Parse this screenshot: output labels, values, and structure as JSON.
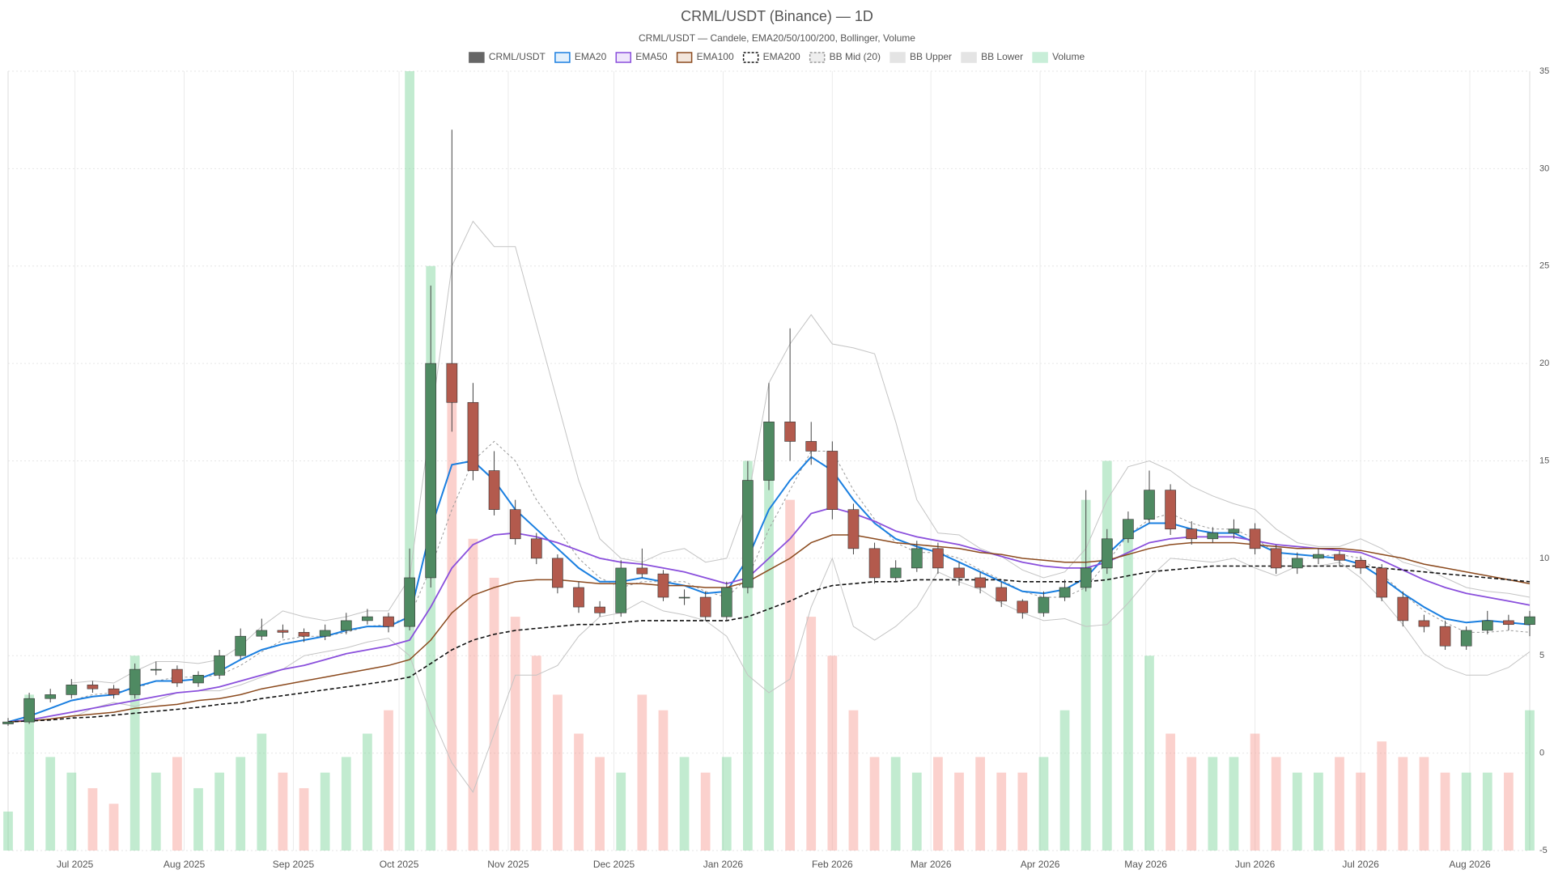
{
  "chart_data": {
    "type": "candlestick",
    "title": "CRML/USDT (Binance) — 1D",
    "subtitle": "CRML/USDT — Candele, EMA20/50/100/200, Bollinger, Volume",
    "xlim": [
      0,
      432
    ],
    "xticks": [
      {
        "value": 19,
        "label": "Jul 2025"
      },
      {
        "value": 50,
        "label": "Aug 2025"
      },
      {
        "value": 81,
        "label": "Sep 2025"
      },
      {
        "value": 111,
        "label": "Oct 2025"
      },
      {
        "value": 142,
        "label": "Nov 2025"
      },
      {
        "value": 172,
        "label": "Dec 2025"
      },
      {
        "value": 203,
        "label": "Jan 2026"
      },
      {
        "value": 234,
        "label": "Feb 2026"
      },
      {
        "value": 262,
        "label": "Mar 2026"
      },
      {
        "value": 293,
        "label": "Apr 2026"
      },
      {
        "value": 323,
        "label": "May 2026"
      },
      {
        "value": 354,
        "label": "Jun 2026"
      },
      {
        "value": 384,
        "label": "Jul 2026"
      },
      {
        "value": 415,
        "label": "Aug 2026"
      }
    ],
    "ylim": [
      -5,
      35
    ],
    "yticks": [
      -5,
      0,
      5,
      10,
      15,
      20,
      25,
      30,
      35
    ],
    "y2lim": [
      0,
      100
    ],
    "grid": true,
    "x": [
      0,
      6,
      12,
      18,
      24,
      30,
      36,
      42,
      48,
      54,
      60,
      66,
      72,
      78,
      84,
      90,
      96,
      102,
      108,
      114,
      120,
      126,
      132,
      138,
      144,
      150,
      156,
      162,
      168,
      174,
      180,
      186,
      192,
      198,
      204,
      210,
      216,
      222,
      228,
      234,
      240,
      246,
      252,
      258,
      264,
      270,
      276,
      282,
      288,
      294,
      300,
      306,
      312,
      318,
      324,
      330,
      336,
      342,
      348,
      354,
      360,
      366,
      372,
      378,
      384,
      390,
      396,
      402,
      408,
      414,
      420,
      426,
      432
    ],
    "candles": {
      "name": "CRML/USDT",
      "color": "#666666",
      "up_color": "#4f8a62",
      "down_color": "#b35a4d",
      "open": [
        1.5,
        1.6,
        2.8,
        3.0,
        3.5,
        3.3,
        3.0,
        4.3,
        4.3,
        3.6,
        4.0,
        5.0,
        6.0,
        6.3,
        6.2,
        6.0,
        6.3,
        6.8,
        7.0,
        6.5,
        9.0,
        20.0,
        18.0,
        14.5,
        12.5,
        11.0,
        10.0,
        8.5,
        7.5,
        7.2,
        9.5,
        9.2,
        8.0,
        8.0,
        7.0,
        8.5,
        14.0,
        17.0,
        16.0,
        15.5,
        12.5,
        10.5,
        9.0,
        9.5,
        10.5,
        9.5,
        9.0,
        8.5,
        7.8,
        7.2,
        8.0,
        8.5,
        9.5,
        11.0,
        12.0,
        13.5,
        11.5,
        11.0,
        11.3,
        11.5,
        10.5,
        9.5,
        10.0,
        10.2,
        9.9,
        9.5,
        8.0,
        6.8,
        6.5,
        5.5,
        6.3,
        6.8,
        6.6
      ],
      "high": [
        1.8,
        3.1,
        3.3,
        3.8,
        3.7,
        3.5,
        4.6,
        4.7,
        4.5,
        4.2,
        5.3,
        6.4,
        6.9,
        6.6,
        6.4,
        6.6,
        7.2,
        7.4,
        7.2,
        10.5,
        24.0,
        32.0,
        19.0,
        15.5,
        13.0,
        11.3,
        10.2,
        8.8,
        7.8,
        9.9,
        10.5,
        9.4,
        8.4,
        8.3,
        8.8,
        15.0,
        19.0,
        21.8,
        17.0,
        16.0,
        12.8,
        10.8,
        9.9,
        10.9,
        10.8,
        9.8,
        9.3,
        8.8,
        7.9,
        8.3,
        8.9,
        13.5,
        11.5,
        12.4,
        14.5,
        13.8,
        11.9,
        11.6,
        12.0,
        11.8,
        10.7,
        10.3,
        10.5,
        10.4,
        10.1,
        9.7,
        8.3,
        7.1,
        6.8,
        6.5,
        7.3,
        7.1,
        7.3
      ],
      "low": [
        1.4,
        1.5,
        2.6,
        2.8,
        3.1,
        2.8,
        2.8,
        4.0,
        3.4,
        3.4,
        3.8,
        4.8,
        5.8,
        5.9,
        5.7,
        5.8,
        6.1,
        6.6,
        6.2,
        6.3,
        8.5,
        16.5,
        14.0,
        12.2,
        10.7,
        9.7,
        8.2,
        7.2,
        7.0,
        7.0,
        9.0,
        7.8,
        7.6,
        6.8,
        6.8,
        8.2,
        13.5,
        15.0,
        14.8,
        12.0,
        10.2,
        8.7,
        8.8,
        9.3,
        9.2,
        8.6,
        8.2,
        7.5,
        6.9,
        7.0,
        7.8,
        8.3,
        9.2,
        10.8,
        11.8,
        11.2,
        10.7,
        10.8,
        11.0,
        10.2,
        9.2,
        9.2,
        9.7,
        9.6,
        9.2,
        7.8,
        6.5,
        6.2,
        5.3,
        5.3,
        6.1,
        6.3,
        6.0
      ],
      "close": [
        1.6,
        2.8,
        3.0,
        3.5,
        3.3,
        3.0,
        4.3,
        4.3,
        3.6,
        4.0,
        5.0,
        6.0,
        6.3,
        6.2,
        6.0,
        6.3,
        6.8,
        7.0,
        6.5,
        9.0,
        20.0,
        18.0,
        14.5,
        12.5,
        11.0,
        10.0,
        8.5,
        7.5,
        7.2,
        9.5,
        9.2,
        8.0,
        8.0,
        7.0,
        8.5,
        14.0,
        17.0,
        16.0,
        15.5,
        12.5,
        10.5,
        9.0,
        9.5,
        10.5,
        9.5,
        9.0,
        8.5,
        7.8,
        7.2,
        8.0,
        8.5,
        9.5,
        11.0,
        12.0,
        13.5,
        11.5,
        11.0,
        11.3,
        11.5,
        10.5,
        9.5,
        10.0,
        10.2,
        9.9,
        9.5,
        8.0,
        6.8,
        6.5,
        5.5,
        6.3,
        6.8,
        6.6,
        7.0
      ]
    },
    "series": [
      {
        "name": "EMA20",
        "color": "#1a7fe0",
        "width": 2,
        "fill": "#e3f0fc",
        "values": [
          1.6,
          1.9,
          2.3,
          2.7,
          2.9,
          3.0,
          3.4,
          3.7,
          3.7,
          3.8,
          4.2,
          4.8,
          5.3,
          5.6,
          5.8,
          6.0,
          6.3,
          6.5,
          6.5,
          7.0,
          11.5,
          14.8,
          15.0,
          14.0,
          12.5,
          11.5,
          10.5,
          9.5,
          8.8,
          8.8,
          9.0,
          8.8,
          8.6,
          8.2,
          8.3,
          10,
          12.5,
          14,
          15.2,
          14.5,
          13,
          11.8,
          11,
          10.6,
          10.3,
          9.8,
          9.3,
          8.8,
          8.3,
          8.2,
          8.4,
          9,
          10.2,
          11.2,
          11.8,
          11.8,
          11.5,
          11.3,
          11.3,
          10.8,
          10.3,
          10.2,
          10.1,
          10,
          9.7,
          9.0,
          8.2,
          7.5,
          6.9,
          6.7,
          6.8,
          6.7,
          6.6
        ]
      },
      {
        "name": "EMA50",
        "color": "#8a4fdc",
        "width": 1.8,
        "fill": "#efe6fb",
        "values": [
          1.6,
          1.7,
          1.9,
          2.1,
          2.3,
          2.5,
          2.7,
          2.9,
          3.1,
          3.2,
          3.4,
          3.7,
          4.0,
          4.3,
          4.5,
          4.8,
          5.1,
          5.3,
          5.5,
          5.8,
          7.5,
          9.5,
          10.7,
          11.2,
          11.3,
          11.1,
          10.8,
          10.4,
          10.0,
          9.8,
          9.7,
          9.5,
          9.3,
          9.0,
          8.7,
          9.0,
          10,
          11,
          12.3,
          12.6,
          12.3,
          11.9,
          11.4,
          11.1,
          10.9,
          10.7,
          10.4,
          10.1,
          9.8,
          9.6,
          9.5,
          9.5,
          9.8,
          10.3,
          10.8,
          11.0,
          11.1,
          11.1,
          11.1,
          10.9,
          10.7,
          10.6,
          10.5,
          10.4,
          10.3,
          9.9,
          9.4,
          8.9,
          8.5,
          8.2,
          8.0,
          7.8,
          7.6
        ]
      },
      {
        "name": "EMA100",
        "color": "#8b4a1e",
        "width": 1.5,
        "fill": "#f3e6dc",
        "values": [
          1.6,
          1.65,
          1.75,
          1.9,
          2.0,
          2.1,
          2.3,
          2.4,
          2.5,
          2.7,
          2.8,
          3.0,
          3.3,
          3.5,
          3.7,
          3.9,
          4.1,
          4.3,
          4.5,
          4.8,
          5.8,
          7.2,
          8.1,
          8.5,
          8.8,
          8.9,
          8.9,
          8.8,
          8.7,
          8.7,
          8.7,
          8.6,
          8.6,
          8.5,
          8.5,
          8.8,
          9.4,
          10.0,
          10.8,
          11.2,
          11.2,
          11.0,
          10.8,
          10.7,
          10.6,
          10.5,
          10.3,
          10.2,
          10.0,
          9.9,
          9.8,
          9.8,
          9.9,
          10.2,
          10.5,
          10.7,
          10.8,
          10.8,
          10.8,
          10.7,
          10.6,
          10.5,
          10.5,
          10.5,
          10.4,
          10.2,
          10.0,
          9.7,
          9.5,
          9.3,
          9.1,
          8.9,
          8.7
        ]
      },
      {
        "name": "EMA200",
        "color": "#111111",
        "width": 1.6,
        "dash": true,
        "fill": "#ffffff",
        "values": [
          1.6,
          1.65,
          1.7,
          1.8,
          1.85,
          1.95,
          2.05,
          2.15,
          2.25,
          2.35,
          2.5,
          2.6,
          2.8,
          2.95,
          3.1,
          3.25,
          3.4,
          3.55,
          3.7,
          3.9,
          4.6,
          5.3,
          5.8,
          6.1,
          6.3,
          6.4,
          6.5,
          6.6,
          6.6,
          6.7,
          6.8,
          6.8,
          6.8,
          6.8,
          6.8,
          7.0,
          7.4,
          7.8,
          8.3,
          8.6,
          8.7,
          8.8,
          8.8,
          8.9,
          8.9,
          8.9,
          8.9,
          8.9,
          8.8,
          8.8,
          8.8,
          8.8,
          8.9,
          9.1,
          9.3,
          9.4,
          9.5,
          9.6,
          9.6,
          9.6,
          9.6,
          9.6,
          9.6,
          9.6,
          9.6,
          9.5,
          9.4,
          9.3,
          9.2,
          9.1,
          9.0,
          8.9,
          8.8
        ]
      },
      {
        "name": "BB Mid (20)",
        "color": "#999999",
        "width": 1,
        "dash": true,
        "fill": "#eeeeee",
        "values": [
          null,
          null,
          null,
          2.7,
          3.0,
          3.1,
          3.3,
          3.7,
          3.9,
          3.9,
          4.0,
          4.5,
          5.2,
          5.8,
          6.0,
          6.0,
          6.2,
          6.5,
          6.6,
          7.0,
          9.5,
          12.5,
          15,
          16,
          15,
          13,
          11.5,
          10,
          9,
          8.5,
          8.8,
          8.8,
          8.8,
          8.3,
          8.0,
          9,
          11.5,
          13.5,
          15.5,
          15.5,
          13.5,
          12,
          10.8,
          10.3,
          10.3,
          10.0,
          9.4,
          8.9,
          8.3,
          8.0,
          8.0,
          8.5,
          9.8,
          11.2,
          12.0,
          12.3,
          11.8,
          11.5,
          11.5,
          11.0,
          10.3,
          10.2,
          10.1,
          10.2,
          10.0,
          9.2,
          8.2,
          7.3,
          6.7,
          6.2,
          6.2,
          6.3,
          6.2
        ]
      },
      {
        "name": "BB Upper",
        "color": "#c4c4c4",
        "width": 1,
        "fill": "#e4e4e4",
        "values": [
          null,
          null,
          null,
          3.6,
          3.7,
          3.6,
          4.2,
          4.7,
          4.7,
          4.6,
          4.8,
          5.5,
          6.5,
          7.3,
          7.0,
          6.8,
          7.0,
          7.3,
          7.3,
          9,
          17,
          25,
          27.3,
          26,
          26,
          22,
          18,
          14,
          11,
          10,
          9.8,
          10.3,
          10.5,
          9.8,
          10.0,
          13,
          19,
          21,
          22.5,
          21,
          20.8,
          20.5,
          17,
          13,
          11.3,
          11.2,
          10.5,
          10.1,
          9.4,
          9,
          9.3,
          10.5,
          13,
          14.7,
          15,
          14.5,
          13.7,
          13.2,
          12.8,
          12.5,
          11.5,
          10.8,
          10.6,
          10.6,
          11.0,
          10.5,
          9.8,
          9.5,
          9,
          8.5,
          8.3,
          8.2,
          8.0
        ]
      },
      {
        "name": "BB Lower",
        "color": "#c4c4c4",
        "width": 1,
        "fill": "#e4e4e4",
        "values": [
          null,
          null,
          null,
          1.8,
          2.3,
          2.6,
          2.4,
          2.7,
          3.1,
          3.2,
          3.2,
          3.5,
          3.9,
          4.3,
          5.0,
          5.2,
          5.4,
          5.7,
          5.9,
          5,
          2,
          -0.5,
          -2,
          1,
          4,
          4,
          4.5,
          6,
          7,
          7.2,
          7.8,
          7.3,
          7.1,
          6.8,
          6,
          4,
          3.1,
          3.8,
          7.5,
          10,
          6.5,
          5.8,
          6.5,
          7.5,
          9.3,
          8.8,
          8.4,
          7.7,
          7.2,
          6.8,
          6.9,
          6.5,
          6.6,
          7.7,
          9.0,
          10,
          9.9,
          9.8,
          10,
          9.5,
          9.1,
          9.6,
          9.6,
          9.8,
          9.0,
          7.9,
          6.6,
          5.1,
          4.4,
          4.0,
          4.0,
          4.4,
          5.2
        ]
      }
    ],
    "volume": {
      "name": "Volume",
      "color": "#c8eed8",
      "up_color": "rgba(120,210,150,0.45)",
      "down_color": "rgba(245,140,130,0.4)",
      "values": [
        5,
        20,
        12,
        10,
        8,
        6,
        25,
        10,
        12,
        8,
        10,
        12,
        15,
        10,
        8,
        10,
        12,
        15,
        18,
        100,
        75,
        60,
        40,
        35,
        30,
        25,
        20,
        15,
        12,
        10,
        20,
        18,
        12,
        10,
        12,
        50,
        55,
        45,
        30,
        25,
        18,
        12,
        12,
        10,
        12,
        10,
        12,
        10,
        10,
        12,
        18,
        45,
        50,
        40,
        25,
        15,
        12,
        12,
        12,
        15,
        12,
        10,
        10,
        12,
        10,
        14,
        12,
        12,
        10,
        10,
        10,
        10,
        18
      ]
    }
  }
}
